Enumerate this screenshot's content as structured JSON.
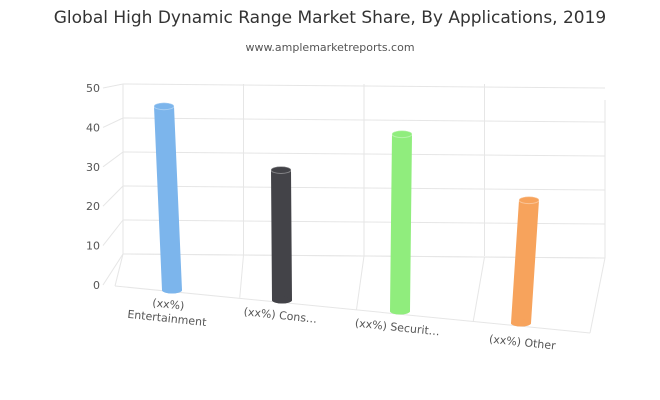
{
  "chart_data": {
    "type": "bar",
    "title": "Global High Dynamic Range Market Share, By Applications, 2019",
    "subtitle": "www.amplemarketreports.com",
    "categories": [
      "(xx%) Entertainment",
      "(xx%) Cons…",
      "(xx%) Securit…",
      "(xx%) Other"
    ],
    "category_lines": [
      [
        "(xx%)",
        "Entertainment"
      ],
      [
        "(xx%) Cons…"
      ],
      [
        "(xx%) Securit…"
      ],
      [
        "(xx%) Other"
      ]
    ],
    "values": [
      47,
      33,
      45,
      32
    ],
    "colors": [
      "#7cb5ec",
      "#434348",
      "#90ed7d",
      "#f7a35c"
    ],
    "ylim": [
      0,
      50
    ],
    "yticks": [
      "0",
      "10",
      "20",
      "30",
      "40",
      "50"
    ],
    "xlabel": "",
    "ylabel": "",
    "grid": true,
    "legend": "none"
  }
}
